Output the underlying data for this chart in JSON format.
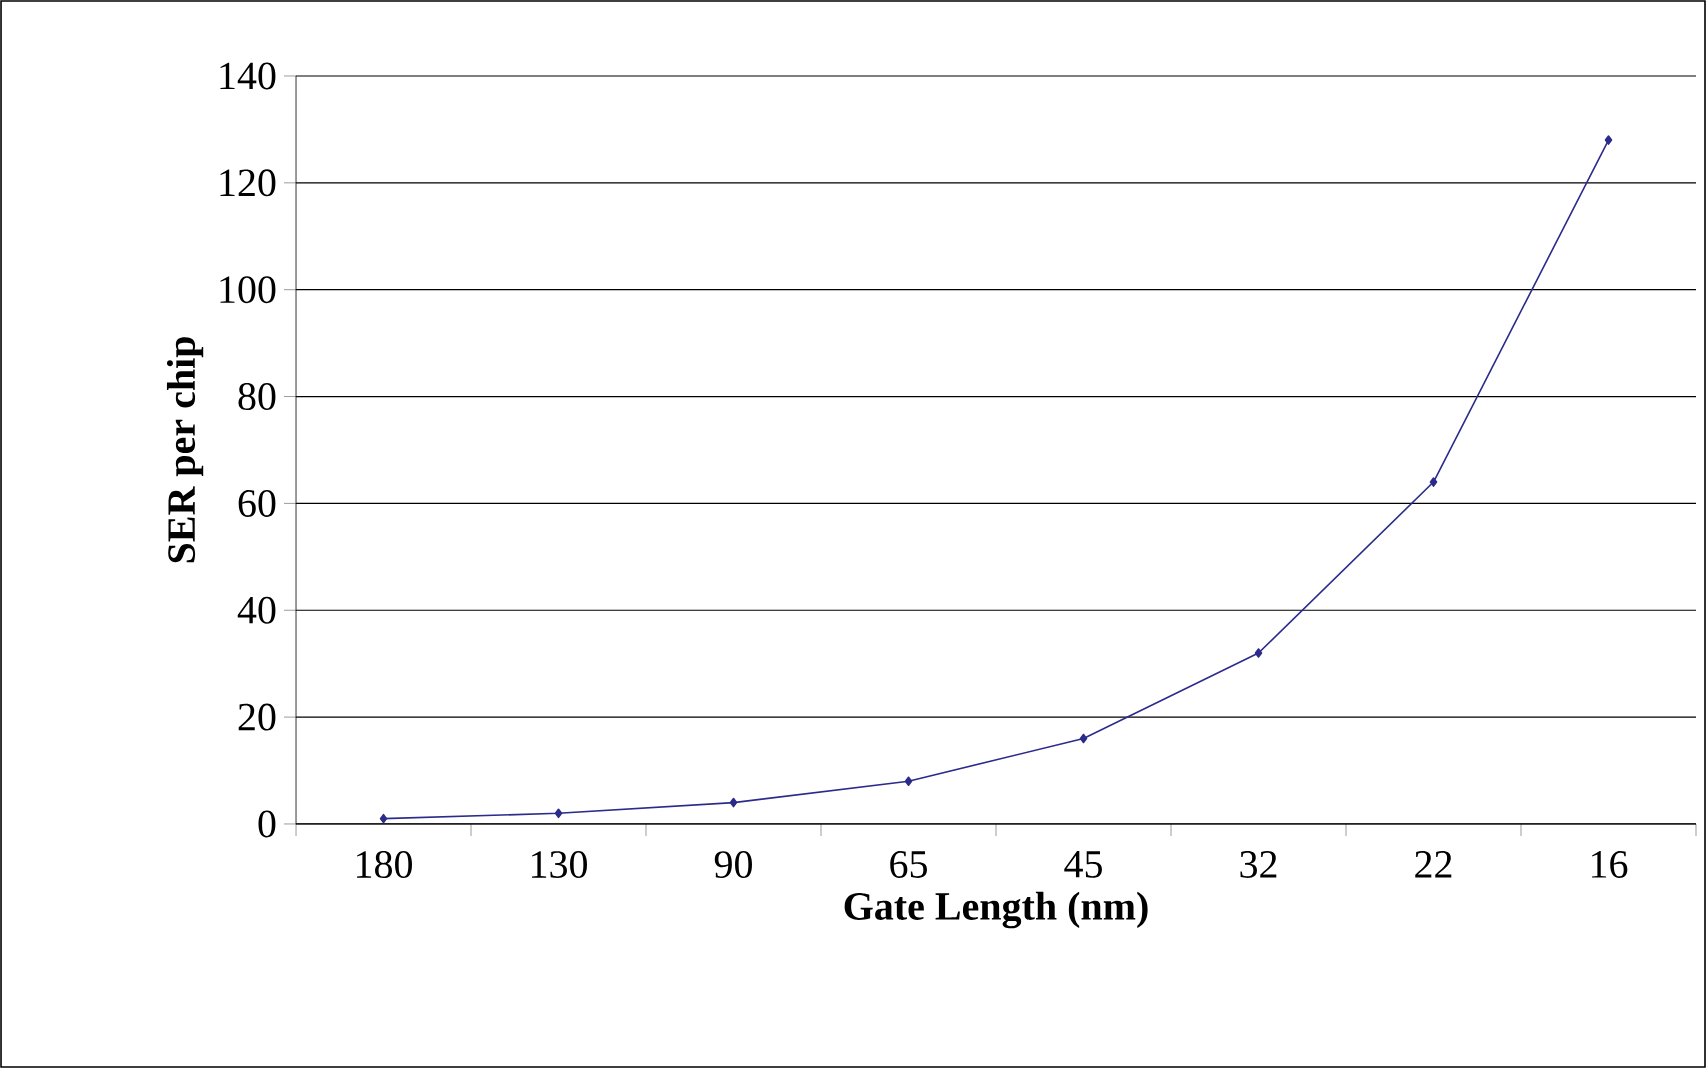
{
  "chart_data": {
    "type": "line",
    "xlabel": "Gate Length (nm)",
    "ylabel": "SER per chip",
    "categories": [
      "180",
      "130",
      "90",
      "65",
      "45",
      "32",
      "22",
      "16"
    ],
    "series": [
      {
        "color": "#2b2b8c",
        "values": [
          1,
          2,
          4,
          8,
          16,
          32,
          64,
          128
        ]
      }
    ],
    "ylim": [
      0,
      140
    ],
    "yticks": [
      0,
      20,
      40,
      60,
      80,
      100,
      120,
      140
    ],
    "grid": "y",
    "marker": "diamond",
    "line_style": "solid"
  }
}
